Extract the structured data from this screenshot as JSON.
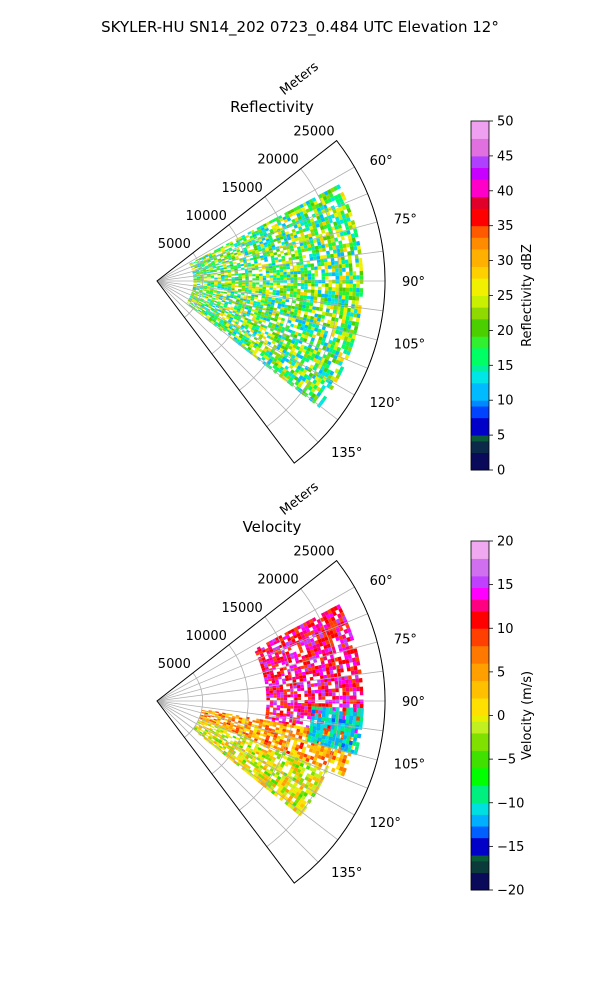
{
  "figure": {
    "suptitle": "SKYLER-HU  SN14_202  0723_0.484 UTC Elevation 12°"
  },
  "chart_data": [
    {
      "type": "heatmap",
      "subtype": "polar-sector-radar",
      "title": "Reflectivity",
      "radial_label": "Meters",
      "radial_ticks": [
        "5000",
        "10000",
        "15000",
        "20000",
        "25000"
      ],
      "radial_values": [
        5000,
        10000,
        15000,
        20000,
        25000
      ],
      "rmax": 25000,
      "azimuth_ticks": [
        "60°",
        "75°",
        "90°",
        "105°",
        "120°",
        "135°"
      ],
      "azimuth_values": [
        60,
        75,
        90,
        105,
        120,
        135
      ],
      "azimuth_range": [
        52,
        143
      ],
      "grid": true,
      "colorbar": {
        "label": "Reflectivity dBZ",
        "vmin": 0,
        "vmax": 50,
        "ticks": [
          "0",
          "5",
          "10",
          "15",
          "20",
          "25",
          "30",
          "35",
          "40",
          "45",
          "50"
        ],
        "tick_values": [
          0,
          5,
          10,
          15,
          20,
          25,
          30,
          35,
          40,
          45,
          50
        ],
        "colormap": "NWSRef"
      },
      "echo_regions": [
        {
          "az": [
            62,
            128
          ],
          "r": [
            4000,
            22500
          ],
          "value_range": [
            10,
            30
          ],
          "typical": 19
        }
      ]
    },
    {
      "type": "heatmap",
      "subtype": "polar-sector-radar",
      "title": "Velocity",
      "radial_label": "Meters",
      "radial_ticks": [
        "5000",
        "10000",
        "15000",
        "20000",
        "25000"
      ],
      "radial_values": [
        5000,
        10000,
        15000,
        20000,
        25000
      ],
      "rmax": 25000,
      "azimuth_ticks": [
        "60°",
        "75°",
        "90°",
        "105°",
        "120°",
        "135°"
      ],
      "azimuth_values": [
        60,
        75,
        90,
        105,
        120,
        135
      ],
      "azimuth_range": [
        52,
        143
      ],
      "grid": true,
      "colorbar": {
        "label": "Velocity (m/s)",
        "vmin": -20,
        "vmax": 20,
        "ticks": [
          "−20",
          "−15",
          "−10",
          "−5",
          "0",
          "5",
          "10",
          "15",
          "20"
        ],
        "tick_values": [
          -20,
          -15,
          -10,
          -5,
          0,
          5,
          10,
          15,
          20
        ],
        "colormap": "NWSVel"
      },
      "echo_regions": [
        {
          "az": [
            62,
            100
          ],
          "r": [
            12000,
            22500
          ],
          "value_range": [
            8,
            16
          ],
          "typical": 12
        },
        {
          "az": [
            100,
            112
          ],
          "r": [
            5000,
            22000
          ],
          "value_range": [
            -2,
            10
          ],
          "typical": 5
        },
        {
          "az": [
            112,
            128
          ],
          "r": [
            5000,
            20000
          ],
          "value_range": [
            -8,
            4
          ],
          "typical": 0
        },
        {
          "az": [
            92,
            105
          ],
          "r": [
            17000,
            22500
          ],
          "value_range": [
            -14,
            -9
          ],
          "typical": -11
        }
      ]
    }
  ],
  "colors": {
    "grid": "#b0b0b0",
    "axis": "#000000",
    "background": "#ffffff"
  }
}
